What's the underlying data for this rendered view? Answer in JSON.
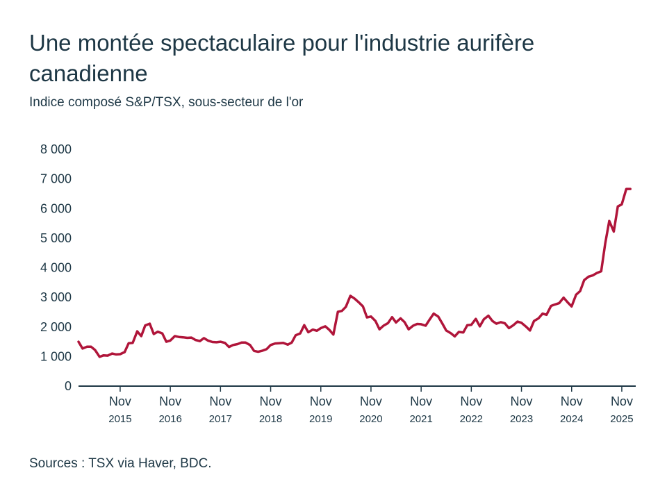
{
  "title": "Une montée spectaculaire pour l'industrie aurifère canadienne",
  "subtitle": "Indice composé S&P/TSX, sous-secteur de l'or",
  "source": "Sources : TSX via Haver, BDC.",
  "colors": {
    "line": "#b0153a",
    "axis": "#1d3745",
    "text": "#1d3745"
  },
  "chart_data": {
    "type": "line",
    "title": "Une montée spectaculaire pour l'industrie aurifère canadienne",
    "subtitle": "Indice composé S&P/TSX, sous-secteur de l'or",
    "xlabel": "",
    "ylabel": "",
    "ylim": [
      0,
      8000
    ],
    "yticks": [
      0,
      1000,
      2000,
      3000,
      4000,
      5000,
      6000,
      7000,
      8000
    ],
    "ytick_labels": [
      "0",
      "1 000",
      "2 000",
      "3 000",
      "4 000",
      "5 000",
      "6 000",
      "7 000",
      "8 000"
    ],
    "xlim": [
      2015.0,
      2026.08
    ],
    "xticks": [
      {
        "x": 2015.83,
        "month": "Nov",
        "year": "2015"
      },
      {
        "x": 2016.83,
        "month": "Nov",
        "year": "2016"
      },
      {
        "x": 2017.83,
        "month": "Nov",
        "year": "2017"
      },
      {
        "x": 2018.83,
        "month": "Nov",
        "year": "2018"
      },
      {
        "x": 2019.83,
        "month": "Nov",
        "year": "2019"
      },
      {
        "x": 2020.83,
        "month": "Nov",
        "year": "2020"
      },
      {
        "x": 2021.83,
        "month": "Nov",
        "year": "2021"
      },
      {
        "x": 2022.83,
        "month": "Nov",
        "year": "2022"
      },
      {
        "x": 2023.83,
        "month": "Nov",
        "year": "2023"
      },
      {
        "x": 2024.83,
        "month": "Nov",
        "year": "2024"
      },
      {
        "x": 2025.83,
        "month": "Nov",
        "year": "2025"
      }
    ],
    "grid": false,
    "series": [
      {
        "name": "Indice composé S&P/TSX, sous-secteur de l'or",
        "x": [
          2015.0,
          2015.08,
          2015.17,
          2015.25,
          2015.33,
          2015.42,
          2015.5,
          2015.58,
          2015.67,
          2015.75,
          2015.83,
          2015.92,
          2016.0,
          2016.08,
          2016.17,
          2016.25,
          2016.33,
          2016.42,
          2016.5,
          2016.58,
          2016.67,
          2016.75,
          2016.83,
          2016.92,
          2017.0,
          2017.08,
          2017.17,
          2017.25,
          2017.33,
          2017.42,
          2017.5,
          2017.58,
          2017.67,
          2017.75,
          2017.83,
          2017.92,
          2018.0,
          2018.08,
          2018.17,
          2018.25,
          2018.33,
          2018.42,
          2018.5,
          2018.58,
          2018.67,
          2018.75,
          2018.83,
          2018.92,
          2019.0,
          2019.08,
          2019.17,
          2019.25,
          2019.33,
          2019.42,
          2019.5,
          2019.58,
          2019.67,
          2019.75,
          2019.83,
          2019.92,
          2020.0,
          2020.08,
          2020.17,
          2020.25,
          2020.33,
          2020.42,
          2020.5,
          2020.58,
          2020.67,
          2020.75,
          2020.83,
          2020.92,
          2021.0,
          2021.08,
          2021.17,
          2021.25,
          2021.33,
          2021.42,
          2021.5,
          2021.58,
          2021.67,
          2021.75,
          2021.83,
          2021.92,
          2022.0,
          2022.08,
          2022.17,
          2022.25,
          2022.33,
          2022.42,
          2022.5,
          2022.58,
          2022.67,
          2022.75,
          2022.83,
          2022.92,
          2023.0,
          2023.08,
          2023.17,
          2023.25,
          2023.33,
          2023.42,
          2023.5,
          2023.58,
          2023.67,
          2023.75,
          2023.83,
          2023.92,
          2024.0,
          2024.08,
          2024.17,
          2024.25,
          2024.33,
          2024.42,
          2024.5,
          2024.58,
          2024.67,
          2024.75,
          2024.83,
          2024.92,
          2025.0,
          2025.08,
          2025.17,
          2025.25,
          2025.33,
          2025.42,
          2025.5,
          2025.58,
          2025.67,
          2025.75,
          2025.83,
          2025.92,
          2026.0
        ],
        "values": [
          1500,
          1270,
          1330,
          1330,
          1220,
          990,
          1040,
          1030,
          1100,
          1070,
          1080,
          1150,
          1450,
          1460,
          1850,
          1690,
          2050,
          2110,
          1760,
          1840,
          1780,
          1500,
          1540,
          1690,
          1660,
          1650,
          1630,
          1640,
          1560,
          1520,
          1620,
          1540,
          1490,
          1480,
          1500,
          1460,
          1320,
          1390,
          1420,
          1470,
          1470,
          1390,
          1190,
          1160,
          1200,
          1250,
          1390,
          1440,
          1450,
          1460,
          1400,
          1470,
          1720,
          1780,
          2060,
          1820,
          1910,
          1870,
          1960,
          2020,
          1900,
          1740,
          2510,
          2540,
          2680,
          3050,
          2960,
          2840,
          2690,
          2320,
          2350,
          2200,
          1920,
          2040,
          2130,
          2330,
          2150,
          2290,
          2160,
          1920,
          2040,
          2100,
          2090,
          2040,
          2250,
          2450,
          2350,
          2120,
          1880,
          1790,
          1680,
          1830,
          1810,
          2060,
          2070,
          2270,
          2020,
          2260,
          2380,
          2200,
          2110,
          2160,
          2120,
          1960,
          2060,
          2180,
          2140,
          2010,
          1880,
          2200,
          2290,
          2450,
          2410,
          2710,
          2760,
          2800,
          2990,
          2830,
          2690,
          3090,
          3210,
          3580,
          3700,
          3740,
          3820,
          3880,
          4820,
          5580,
          5220,
          6070,
          6140,
          6660,
          6660
        ]
      }
    ]
  }
}
